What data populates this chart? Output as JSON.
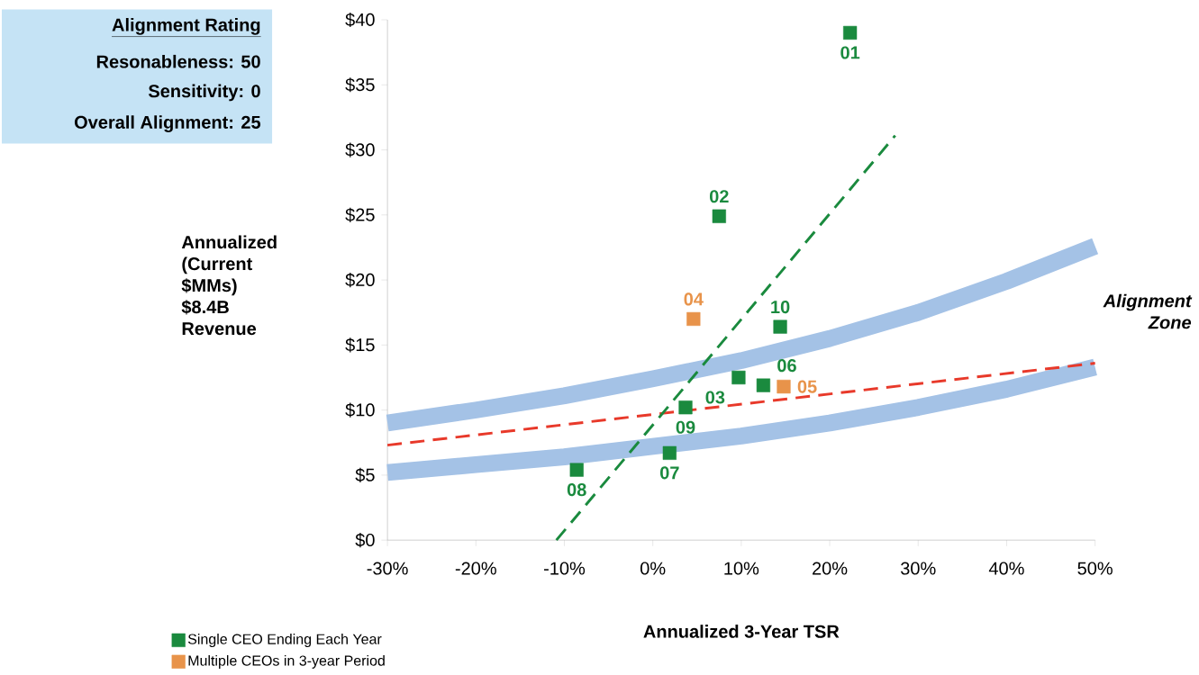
{
  "chart_data": {
    "type": "scatter",
    "xlabel": "Annualized 3-Year TSR",
    "ylabel": "Annualized (Current $MMs) $8.4B Revenue",
    "xlim": [
      -30,
      50
    ],
    "ylim": [
      0,
      40
    ],
    "xticks": [
      {
        "value": -30,
        "label": "-30%"
      },
      {
        "value": -20,
        "label": "-20%"
      },
      {
        "value": -10,
        "label": "-10%"
      },
      {
        "value": 0,
        "label": "0%"
      },
      {
        "value": 10,
        "label": "10%"
      },
      {
        "value": 20,
        "label": "20%"
      },
      {
        "value": 30,
        "label": "30%"
      },
      {
        "value": 40,
        "label": "40%"
      },
      {
        "value": 50,
        "label": "50%"
      }
    ],
    "yticks": [
      {
        "value": 0,
        "label": "$0"
      },
      {
        "value": 5,
        "label": "$5"
      },
      {
        "value": 10,
        "label": "$10"
      },
      {
        "value": 15,
        "label": "$15"
      },
      {
        "value": 20,
        "label": "$20"
      },
      {
        "value": 25,
        "label": "$25"
      },
      {
        "value": 30,
        "label": "$30"
      },
      {
        "value": 35,
        "label": "$35"
      },
      {
        "value": 40,
        "label": "$40"
      }
    ],
    "marker": "square",
    "legend": "bottom left",
    "series": [
      {
        "type": "line",
        "marker": "none",
        "color": "#a4c2e6",
        "x": [
          -30,
          -20,
          -10,
          0,
          10,
          20,
          30,
          40,
          50
        ],
        "values": [
          9.0,
          10.0,
          11.1,
          12.4,
          13.8,
          15.5,
          17.5,
          19.9,
          22.6
        ]
      },
      {
        "type": "line",
        "marker": "none",
        "color": "#a4c2e6",
        "x": [
          -30,
          -20,
          -10,
          0,
          10,
          20,
          30,
          40,
          50
        ],
        "values": [
          5.2,
          5.8,
          6.4,
          7.2,
          8.0,
          9.0,
          10.2,
          11.6,
          13.3
        ]
      },
      {
        "type": "line",
        "marker": "none",
        "color": "#e8392a",
        "line_style": "dashed",
        "x": [
          -30,
          50
        ],
        "values": [
          7.3,
          13.6
        ]
      },
      {
        "type": "line",
        "marker": "none",
        "color": "#1a8a3e",
        "line_style": "dashed",
        "x": [
          -10.9,
          27.4
        ],
        "values": [
          0,
          31.1
        ]
      },
      {
        "name": "Single CEO Ending Each Year",
        "color": "#1a8a3e",
        "x": [
          22.3,
          7.5,
          9.7,
          12.5,
          1.9,
          -8.6,
          3.7,
          14.4
        ],
        "values": [
          39.0,
          24.9,
          12.5,
          11.9,
          6.7,
          5.4,
          10.2,
          16.4
        ]
      },
      {
        "name": "Multiple CEOs in 3-year Period",
        "color": "#e8934a",
        "x": [
          4.6,
          14.8
        ],
        "values": [
          17.0,
          11.8
        ]
      }
    ],
    "annotations": [
      "Alignment Rating",
      "Resonableness: 50",
      "Sensitivity: 0",
      "Overall  Alignment: 25",
      "Alignment Zone",
      {
        "text": "01",
        "x": 22.3,
        "y": 39.0
      },
      {
        "text": "02",
        "x": 7.5,
        "y": 24.9
      },
      {
        "text": "03",
        "x": 9.7,
        "y": 12.5
      },
      {
        "text": "04",
        "x": 4.6,
        "y": 17.0
      },
      {
        "text": "05",
        "x": 14.8,
        "y": 11.8
      },
      {
        "text": "06",
        "x": 12.5,
        "y": 11.9
      },
      {
        "text": "07",
        "x": 1.9,
        "y": 6.7
      },
      {
        "text": "08",
        "x": -8.6,
        "y": 5.4
      },
      {
        "text": "09",
        "x": 3.7,
        "y": 10.2
      },
      {
        "text": "10",
        "x": 14.4,
        "y": 16.4
      }
    ]
  }
}
